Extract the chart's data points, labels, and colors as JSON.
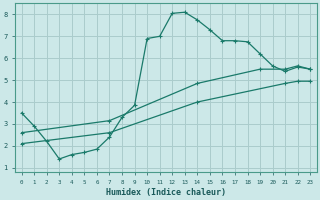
{
  "xlabel": "Humidex (Indice chaleur)",
  "background_color": "#cce8e8",
  "grid_color": "#aacccc",
  "line_color": "#1a7a6a",
  "line1_x": [
    0,
    1,
    2,
    3,
    4,
    5,
    6,
    7,
    8,
    9,
    10,
    11,
    12,
    13,
    14,
    15,
    16,
    17,
    18,
    19,
    20,
    21,
    22,
    23
  ],
  "line1_y": [
    3.5,
    2.9,
    2.2,
    1.4,
    1.6,
    1.7,
    1.85,
    2.4,
    3.3,
    3.85,
    6.9,
    7.0,
    8.05,
    8.1,
    7.75,
    7.3,
    6.8,
    6.8,
    6.75,
    6.2,
    5.65,
    5.4,
    5.6,
    5.5
  ],
  "line2_x": [
    0,
    7,
    14,
    19,
    21,
    22,
    23
  ],
  "line2_y": [
    2.6,
    3.15,
    4.85,
    5.5,
    5.5,
    5.65,
    5.5
  ],
  "line3_x": [
    0,
    7,
    14,
    21,
    22,
    23
  ],
  "line3_y": [
    2.1,
    2.6,
    4.0,
    4.85,
    4.95,
    4.95
  ],
  "ylim": [
    0.8,
    8.5
  ],
  "xlim": [
    -0.5,
    23.5
  ],
  "yticks": [
    1,
    2,
    3,
    4,
    5,
    6,
    7,
    8
  ],
  "xticks": [
    0,
    1,
    2,
    3,
    4,
    5,
    6,
    7,
    8,
    9,
    10,
    11,
    12,
    13,
    14,
    15,
    16,
    17,
    18,
    19,
    20,
    21,
    22,
    23
  ]
}
